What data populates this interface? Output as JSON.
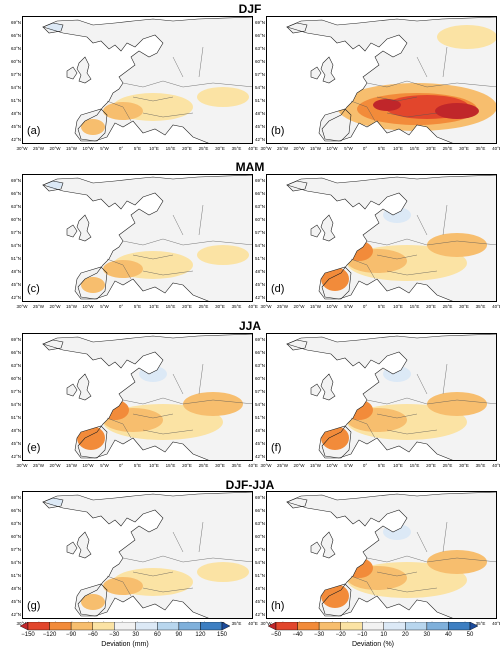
{
  "rows": [
    {
      "title": "DJF"
    },
    {
      "title": "MAM"
    },
    {
      "title": "JJA"
    },
    {
      "title": "DJF-JJA"
    }
  ],
  "panels": [
    {
      "label": "(a)",
      "shading": "light"
    },
    {
      "label": "(b)",
      "shading": "strong"
    },
    {
      "label": "(c)",
      "shading": "light"
    },
    {
      "label": "(d)",
      "shading": "medium"
    },
    {
      "label": "(e)",
      "shading": "medium"
    },
    {
      "label": "(f)",
      "shading": "medium"
    },
    {
      "label": "(g)",
      "shading": "light"
    },
    {
      "label": "(h)",
      "shading": "medium"
    }
  ],
  "lat_labels": [
    "69°N",
    "66°N",
    "63°N",
    "60°N",
    "57°N",
    "54°N",
    "51°N",
    "48°N",
    "45°N",
    "42°N"
  ],
  "lon_labels": [
    "30°W",
    "25°W",
    "20°W",
    "15°W",
    "10°W",
    "5°W",
    "0°",
    "5°E",
    "10°E",
    "15°E",
    "20°E",
    "25°E",
    "30°E",
    "35°E",
    "40°E"
  ],
  "colorbars": [
    {
      "ticks": [
        "−150",
        "−120",
        "−90",
        "−60",
        "−30",
        "30",
        "60",
        "90",
        "120",
        "150"
      ],
      "title": "Deviation (mm)"
    },
    {
      "ticks": [
        "−50",
        "−40",
        "−30",
        "−20",
        "−10",
        "10",
        "20",
        "30",
        "40",
        "50"
      ],
      "title": "Deviation (%)"
    }
  ],
  "colors": {
    "strong_red": "#c0262a",
    "red": "#e2462c",
    "orange": "#f28b3a",
    "light_orange": "#f7be6e",
    "pale_yellow": "#fbe3a4",
    "neutral": "#f2f2f2",
    "pale_blue": "#dce9f6",
    "light_blue": "#b8d6ee",
    "blue": "#7fb0db",
    "mid_blue": "#3d7fc2",
    "dark_blue": "#1c4b9a",
    "land": "#f3f3f3"
  }
}
